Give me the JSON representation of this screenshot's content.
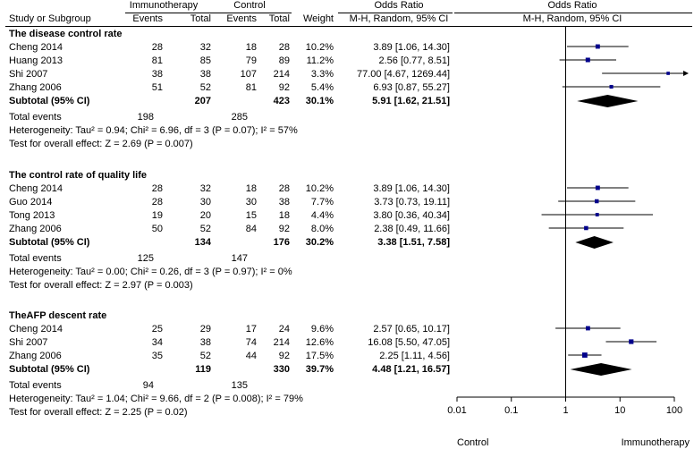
{
  "header": {
    "group1": "Immunotherapy",
    "group2": "Control",
    "or_title_table": "Odds Ratio",
    "or_title_plot": "Odds Ratio",
    "col_study": "Study or Subgroup",
    "col_events1": "Events",
    "col_total1": "Total",
    "col_events2": "Events",
    "col_total2": "Total",
    "col_weight": "Weight",
    "col_method_table": "M-H, Random, 95% CI",
    "col_method_plot": "M-H, Random, 95% CI"
  },
  "subgroups": [
    {
      "title": "The disease control rate",
      "studies": [
        {
          "name": "Cheng 2014",
          "e1": "28",
          "t1": "32",
          "e2": "18",
          "t2": "28",
          "weight": "10.2%",
          "ci": "3.89 [1.06, 14.30]"
        },
        {
          "name": "Huang 2013",
          "e1": "81",
          "t1": "85",
          "e2": "79",
          "t2": "89",
          "weight": "11.2%",
          "ci": "2.56 [0.77, 8.51]"
        },
        {
          "name": "Shi 2007",
          "e1": "38",
          "t1": "38",
          "e2": "107",
          "t2": "214",
          "weight": "3.3%",
          "ci": "77.00 [4.67, 1269.44]"
        },
        {
          "name": "Zhang 2006",
          "e1": "51",
          "t1": "52",
          "e2": "81",
          "t2": "92",
          "weight": "5.4%",
          "ci": "6.93 [0.87, 55.27]"
        }
      ],
      "subtotal": {
        "label": "Subtotal (95% CI)",
        "t1": "207",
        "t2": "423",
        "weight": "30.1%",
        "ci": "5.91 [1.62, 21.51]"
      },
      "total_events": {
        "label": "Total events",
        "e1": "198",
        "e2": "285"
      },
      "heterogeneity": "Heterogeneity: Tau² = 0.94; Chi² = 6.96, df = 3 (P = 0.07); I² = 57%",
      "overall": "Test for overall effect: Z = 2.69 (P = 0.007)"
    },
    {
      "title": "The control rate of quality life",
      "studies": [
        {
          "name": "Cheng 2014",
          "e1": "28",
          "t1": "32",
          "e2": "18",
          "t2": "28",
          "weight": "10.2%",
          "ci": "3.89 [1.06, 14.30]"
        },
        {
          "name": "Guo 2014",
          "e1": "28",
          "t1": "30",
          "e2": "30",
          "t2": "38",
          "weight": "7.7%",
          "ci": "3.73 [0.73, 19.11]"
        },
        {
          "name": "Tong 2013",
          "e1": "19",
          "t1": "20",
          "e2": "15",
          "t2": "18",
          "weight": "4.4%",
          "ci": "3.80 [0.36, 40.34]"
        },
        {
          "name": "Zhang 2006",
          "e1": "50",
          "t1": "52",
          "e2": "84",
          "t2": "92",
          "weight": "8.0%",
          "ci": "2.38 [0.49, 11.66]"
        }
      ],
      "subtotal": {
        "label": "Subtotal (95% CI)",
        "t1": "134",
        "t2": "176",
        "weight": "30.2%",
        "ci": "3.38 [1.51, 7.58]"
      },
      "total_events": {
        "label": "Total events",
        "e1": "125",
        "e2": "147"
      },
      "heterogeneity": "Heterogeneity: Tau² = 0.00; Chi² = 0.26, df = 3 (P = 0.97); I² = 0%",
      "overall": "Test for overall effect: Z = 2.97 (P = 0.003)"
    },
    {
      "title": "TheAFP descent  rate",
      "studies": [
        {
          "name": "Cheng 2014",
          "e1": "25",
          "t1": "29",
          "e2": "17",
          "t2": "24",
          "weight": "9.6%",
          "ci": "2.57 [0.65, 10.17]"
        },
        {
          "name": "Shi 2007",
          "e1": "34",
          "t1": "38",
          "e2": "74",
          "t2": "214",
          "weight": "12.6%",
          "ci": "16.08 [5.50, 47.05]"
        },
        {
          "name": "Zhang 2006",
          "e1": "35",
          "t1": "52",
          "e2": "44",
          "t2": "92",
          "weight": "17.5%",
          "ci": "2.25 [1.11, 4.56]"
        }
      ],
      "subtotal": {
        "label": "Subtotal (95% CI)",
        "t1": "119",
        "t2": "330",
        "weight": "39.7%",
        "ci": "4.48 [1.21, 16.57]"
      },
      "total_events": {
        "label": "Total events",
        "e1": "94",
        "e2": "135"
      },
      "heterogeneity": "Heterogeneity: Tau² = 1.04; Chi² = 9.66, df = 2 (P = 0.008); I² = 79%",
      "overall": "Test for overall effect: Z = 2.25 (P = 0.02)"
    }
  ],
  "axis": {
    "ticks": [
      "0.01",
      "0.1",
      "1",
      "10",
      "100"
    ],
    "left_label": "Control",
    "right_label": "Immunotherapy"
  },
  "chart_data": {
    "type": "scatter",
    "x_scale": "log",
    "xlim": [
      0.01,
      100
    ],
    "x_ticks": [
      0.01,
      0.1,
      1,
      10,
      100
    ],
    "reference_line": 1,
    "marker_color": "#00008b",
    "groups": [
      {
        "name": "The disease control rate",
        "points": [
          {
            "study": "Cheng 2014",
            "or": 3.89,
            "lo": 1.06,
            "hi": 14.3,
            "weight": 10.2
          },
          {
            "study": "Huang 2013",
            "or": 2.56,
            "lo": 0.77,
            "hi": 8.51,
            "weight": 11.2
          },
          {
            "study": "Shi 2007",
            "or": 77.0,
            "lo": 4.67,
            "hi": 1269.44,
            "weight": 3.3
          },
          {
            "study": "Zhang 2006",
            "or": 6.93,
            "lo": 0.87,
            "hi": 55.27,
            "weight": 5.4
          }
        ],
        "subtotal": {
          "or": 5.91,
          "lo": 1.62,
          "hi": 21.51
        }
      },
      {
        "name": "The control rate of quality life",
        "points": [
          {
            "study": "Cheng 2014",
            "or": 3.89,
            "lo": 1.06,
            "hi": 14.3,
            "weight": 10.2
          },
          {
            "study": "Guo 2014",
            "or": 3.73,
            "lo": 0.73,
            "hi": 19.11,
            "weight": 7.7
          },
          {
            "study": "Tong 2013",
            "or": 3.8,
            "lo": 0.36,
            "hi": 40.34,
            "weight": 4.4
          },
          {
            "study": "Zhang 2006",
            "or": 2.38,
            "lo": 0.49,
            "hi": 11.66,
            "weight": 8.0
          }
        ],
        "subtotal": {
          "or": 3.38,
          "lo": 1.51,
          "hi": 7.58
        }
      },
      {
        "name": "TheAFP descent  rate",
        "points": [
          {
            "study": "Cheng 2014",
            "or": 2.57,
            "lo": 0.65,
            "hi": 10.17,
            "weight": 9.6
          },
          {
            "study": "Shi 2007",
            "or": 16.08,
            "lo": 5.5,
            "hi": 47.05,
            "weight": 12.6
          },
          {
            "study": "Zhang 2006",
            "or": 2.25,
            "lo": 1.11,
            "hi": 4.56,
            "weight": 17.5
          }
        ],
        "subtotal": {
          "or": 4.48,
          "lo": 1.21,
          "hi": 16.57
        }
      }
    ]
  }
}
